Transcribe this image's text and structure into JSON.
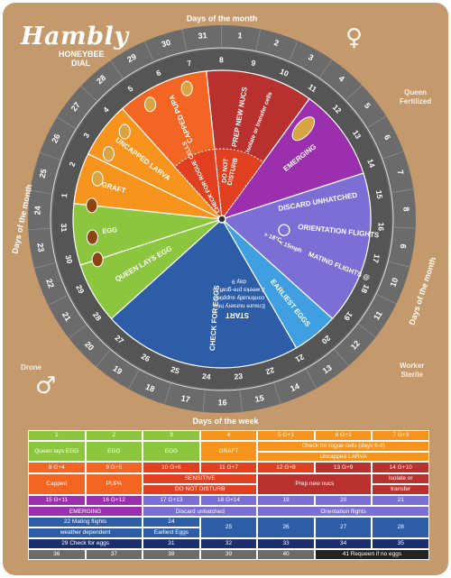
{
  "brand": {
    "logo": "Hambly",
    "sub1": "HONEYBEE",
    "sub2": "DIAL"
  },
  "corners": {
    "queen1": "Queen",
    "queen2": "Fertilized",
    "drone": "Drone",
    "worker1": "Worker",
    "worker2": "Sterile"
  },
  "symbols": {
    "female": "♀",
    "male": "♂"
  },
  "dial": {
    "top_label": "Days of the month",
    "left_label": "Days of the month",
    "right_label": "Days of the month",
    "outer_days": [
      "31",
      "1",
      "2",
      "3",
      "4",
      "5",
      "6",
      "7",
      "8",
      "9",
      "10",
      "11",
      "12",
      "13",
      "14",
      "15",
      "16",
      "17",
      "18",
      "19",
      "20",
      "21",
      "22",
      "23",
      "24",
      "25",
      "26",
      "27",
      "28",
      "29",
      "30"
    ],
    "inner_days": [
      "23",
      "24",
      "25",
      "26",
      "27",
      "28",
      "29",
      "30",
      "31",
      "1",
      "2",
      "3",
      "4",
      "5",
      "6",
      "7",
      "8",
      "9",
      "10",
      "11",
      "12",
      "13",
      "14",
      "15",
      "16",
      "17",
      "18",
      "19",
      "20",
      "21",
      "22"
    ],
    "sectors": {
      "emerging_left": "EMERGING",
      "earliest": "EARLIEST EGGS",
      "discard": "DISCARD UNHATCHED",
      "orientation": "ORIENTATION FLIGHTS",
      "mating": "MATING FLIGHTS @",
      "mph": "< 15mph",
      "temp": "> 18°C",
      "nucs1": "PREP NEW NUCS",
      "nucs2": "Isolate or transfer cells",
      "disturb1": "DO NOT",
      "disturb2": "DISTURB",
      "rogue": "CHECK FOR ROGUE CELLS",
      "capped": "CAPPED PUPA",
      "uncapped": "UNCAPPED LARVA",
      "graft": "GRAFT",
      "queen_lays": "QUEEN LAYS EGG",
      "egg": "EGG",
      "start": "START",
      "start1": "Ensure nursery hive",
      "start2": "continually supplied",
      "start3": "2 weeks pre-graft to",
      "start4": "day 9",
      "check_eggs": "CHECK FOR EGGS"
    }
  },
  "week": {
    "title": "Days of the week",
    "rows": [
      [
        {
          "t": "1"
        },
        {
          "t": "2"
        },
        {
          "t": "3"
        },
        {
          "t": "4"
        },
        {
          "t": "5 G+1"
        },
        {
          "t": "6 G+2"
        },
        {
          "t": "7 G+3"
        }
      ],
      [
        {
          "t": "Queen lays EGG"
        },
        {
          "t": "EGG"
        },
        {
          "t": "EGG"
        },
        {
          "t": "GRAFT"
        },
        {
          "t": "Check for rogue cells (days 6-9)"
        },
        {
          "t": "Uncapped LARVA"
        }
      ],
      [
        {
          "t": "8 G+4"
        },
        {
          "t": "9 G+5"
        },
        {
          "t": "10 G+6"
        },
        {
          "t": "11 G+7"
        },
        {
          "t": "12 G+8"
        },
        {
          "t": "13 G+9"
        },
        {
          "t": "14 G+10"
        }
      ],
      [
        {
          "t": "Capped"
        },
        {
          "t": "PUPA"
        },
        {
          "t": "SENSITIVE"
        },
        {
          "t": "DO NOT DISTURB"
        },
        {
          "t": "Prep new nucs"
        },
        {
          "t": "Isolate or"
        },
        {
          "t": "transfer"
        }
      ],
      [
        {
          "t": "15 G+11"
        },
        {
          "t": "16 G+12"
        },
        {
          "t": "17 G+13"
        },
        {
          "t": "18 G+14"
        },
        {
          "t": "19"
        },
        {
          "t": "20"
        },
        {
          "t": "21"
        }
      ],
      [
        {
          "t": "EMERGING"
        },
        {
          "t": "Discard unhatched"
        },
        {
          "t": "Orientation  flights"
        }
      ],
      [
        {
          "t": "22 Mating flights"
        },
        {
          "t": "weather dependent"
        },
        {
          "t": "24"
        },
        {
          "t": "Earliest Eggs"
        },
        {
          "t": "25"
        },
        {
          "t": "26"
        },
        {
          "t": "27"
        },
        {
          "t": "28"
        }
      ],
      [
        {
          "t": "29 Check for eggs"
        },
        {
          "t": "31"
        },
        {
          "t": "32"
        },
        {
          "t": "33"
        },
        {
          "t": "34"
        },
        {
          "t": "35"
        }
      ],
      [
        {
          "t": "36"
        },
        {
          "t": "37"
        },
        {
          "t": "38"
        },
        {
          "t": "39"
        },
        {
          "t": "40"
        },
        {
          "t": "41 Requeen if no eggs"
        }
      ]
    ]
  },
  "colors": {
    "dial_ring": "#6b6b6b",
    "green": "#8cc63f",
    "orange": "#f7941d",
    "dark_orange": "#f26522",
    "red": "#e0401f",
    "maroon": "#b8312f",
    "purple": "#9b2fae",
    "violet": "#7b6fd6",
    "sky": "#3f9fe0",
    "blue": "#2e5da8",
    "navy": "#1b2f6e",
    "black": "#222222"
  }
}
